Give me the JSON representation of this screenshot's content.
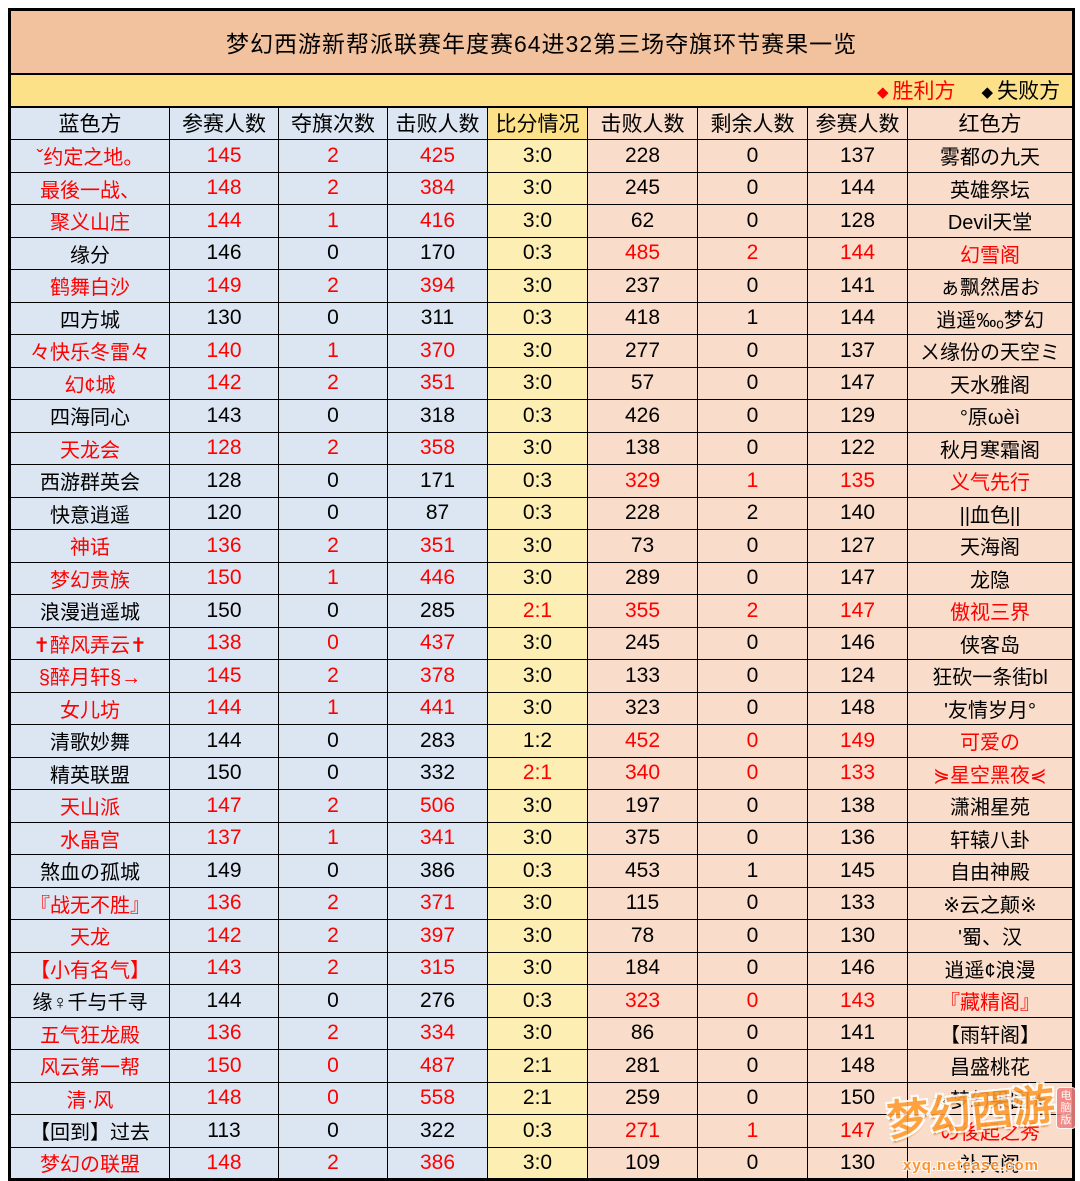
{
  "title": "梦幻西游新帮派联赛年度赛64进32第三场夺旗环节赛果一览",
  "legend": {
    "diamond": "◆",
    "winner_label": "胜利方",
    "loser_label": "失败方",
    "winner_color": "#ff0000",
    "loser_color": "#000000"
  },
  "table": {
    "headers": [
      "蓝色方",
      "参赛人数",
      "夺旗次数",
      "击败人数",
      "比分情况",
      "击败人数",
      "剩余人数",
      "参赛人数",
      "红色方"
    ],
    "rows": [
      {
        "blue": [
          "ˇ约定之地。",
          "145",
          "2",
          "425"
        ],
        "bw": true,
        "score": "3:0",
        "sr": false,
        "red": [
          "228",
          "0",
          "137",
          "雾都の九天"
        ],
        "rw": false
      },
      {
        "blue": [
          "最後一战、",
          "148",
          "2",
          "384"
        ],
        "bw": true,
        "score": "3:0",
        "sr": false,
        "red": [
          "245",
          "0",
          "144",
          "英雄祭坛"
        ],
        "rw": false
      },
      {
        "blue": [
          "聚义山庄",
          "144",
          "1",
          "416"
        ],
        "bw": true,
        "score": "3:0",
        "sr": false,
        "red": [
          "62",
          "0",
          "128",
          "Devil天堂"
        ],
        "rw": false
      },
      {
        "blue": [
          "缘分",
          "146",
          "0",
          "170"
        ],
        "bw": false,
        "score": "0:3",
        "sr": false,
        "red": [
          "485",
          "2",
          "144",
          "幻雪阁"
        ],
        "rw": true
      },
      {
        "blue": [
          "鹤舞白沙",
          "149",
          "2",
          "394"
        ],
        "bw": true,
        "score": "3:0",
        "sr": false,
        "red": [
          "237",
          "0",
          "141",
          "ぁ飘然居お"
        ],
        "rw": false
      },
      {
        "blue": [
          "四方城",
          "130",
          "0",
          "311"
        ],
        "bw": false,
        "score": "0:3",
        "sr": false,
        "red": [
          "418",
          "1",
          "144",
          "逍遥‰ₒ梦幻"
        ],
        "rw": false
      },
      {
        "blue": [
          "々快乐冬雷々",
          "140",
          "1",
          "370"
        ],
        "bw": true,
        "score": "3:0",
        "sr": false,
        "red": [
          "277",
          "0",
          "137",
          "ㄨ缘份の天空ミ"
        ],
        "rw": false
      },
      {
        "blue": [
          "幻¢城",
          "142",
          "2",
          "351"
        ],
        "bw": true,
        "score": "3:0",
        "sr": false,
        "red": [
          "57",
          "0",
          "147",
          "天水雅阁"
        ],
        "rw": false
      },
      {
        "blue": [
          "四海同心",
          "143",
          "0",
          "318"
        ],
        "bw": false,
        "score": "0:3",
        "sr": false,
        "red": [
          "426",
          "0",
          "129",
          "°原ωèì"
        ],
        "rw": false
      },
      {
        "blue": [
          "天龙会",
          "128",
          "2",
          "358"
        ],
        "bw": true,
        "score": "3:0",
        "sr": false,
        "red": [
          "138",
          "0",
          "122",
          "秋月寒霜阁"
        ],
        "rw": false
      },
      {
        "blue": [
          "西游群英会",
          "128",
          "0",
          "171"
        ],
        "bw": false,
        "score": "0:3",
        "sr": false,
        "red": [
          "329",
          "1",
          "135",
          "义气先行"
        ],
        "rw": true
      },
      {
        "blue": [
          "快意逍遥",
          "120",
          "0",
          "87"
        ],
        "bw": false,
        "score": "0:3",
        "sr": false,
        "red": [
          "228",
          "2",
          "140",
          "||血色||"
        ],
        "rw": false
      },
      {
        "blue": [
          "神话",
          "136",
          "2",
          "351"
        ],
        "bw": true,
        "score": "3:0",
        "sr": false,
        "red": [
          "73",
          "0",
          "127",
          "天海阁"
        ],
        "rw": false
      },
      {
        "blue": [
          "梦幻贵族",
          "150",
          "1",
          "446"
        ],
        "bw": true,
        "score": "3:0",
        "sr": false,
        "red": [
          "289",
          "0",
          "147",
          "龙隐"
        ],
        "rw": false
      },
      {
        "blue": [
          "浪漫逍遥城",
          "150",
          "0",
          "285"
        ],
        "bw": false,
        "score": "2:1",
        "sr": true,
        "red": [
          "355",
          "2",
          "147",
          "傲视三界"
        ],
        "rw": true
      },
      {
        "blue": [
          "✝醉风弄云✝",
          "138",
          "0",
          "437"
        ],
        "bw": true,
        "score": "3:0",
        "sr": false,
        "red": [
          "245",
          "0",
          "146",
          "侠客岛"
        ],
        "rw": false
      },
      {
        "blue": [
          "§醉月轩§→",
          "145",
          "2",
          "378"
        ],
        "bw": true,
        "score": "3:0",
        "sr": false,
        "red": [
          "133",
          "0",
          "124",
          "狂砍一条街bl"
        ],
        "rw": false
      },
      {
        "blue": [
          "女儿坊",
          "144",
          "1",
          "441"
        ],
        "bw": true,
        "score": "3:0",
        "sr": false,
        "red": [
          "323",
          "0",
          "148",
          "'友情岁月°"
        ],
        "rw": false
      },
      {
        "blue": [
          "清歌妙舞",
          "144",
          "0",
          "283"
        ],
        "bw": false,
        "score": "1:2",
        "sr": false,
        "red": [
          "452",
          "0",
          "149",
          "可爱の"
        ],
        "rw": true
      },
      {
        "blue": [
          "精英联盟",
          "150",
          "0",
          "332"
        ],
        "bw": false,
        "score": "2:1",
        "sr": true,
        "red": [
          "340",
          "0",
          "133",
          "⋟星空黑夜⋞"
        ],
        "rw": true
      },
      {
        "blue": [
          "天山派",
          "147",
          "2",
          "506"
        ],
        "bw": true,
        "score": "3:0",
        "sr": false,
        "red": [
          "197",
          "0",
          "138",
          "潇湘星苑"
        ],
        "rw": false
      },
      {
        "blue": [
          "水晶宫",
          "137",
          "1",
          "341"
        ],
        "bw": true,
        "score": "3:0",
        "sr": false,
        "red": [
          "375",
          "0",
          "136",
          "轩辕八卦"
        ],
        "rw": false
      },
      {
        "blue": [
          "煞血の孤城",
          "149",
          "0",
          "386"
        ],
        "bw": false,
        "score": "0:3",
        "sr": false,
        "red": [
          "453",
          "1",
          "145",
          "自由神殿"
        ],
        "rw": false
      },
      {
        "blue": [
          "『战无不胜』",
          "136",
          "2",
          "371"
        ],
        "bw": true,
        "score": "3:0",
        "sr": false,
        "red": [
          "115",
          "0",
          "133",
          "※云之颠※"
        ],
        "rw": false
      },
      {
        "blue": [
          "天龙",
          "142",
          "2",
          "397"
        ],
        "bw": true,
        "score": "3:0",
        "sr": false,
        "red": [
          "78",
          "0",
          "130",
          "'蜀、汉"
        ],
        "rw": false
      },
      {
        "blue": [
          "【小有名气】",
          "143",
          "2",
          "315"
        ],
        "bw": true,
        "score": "3:0",
        "sr": false,
        "red": [
          "184",
          "0",
          "146",
          "逍遥¢浪漫"
        ],
        "rw": false
      },
      {
        "blue": [
          "缘♀千与千寻",
          "144",
          "0",
          "276"
        ],
        "bw": false,
        "score": "0:3",
        "sr": false,
        "red": [
          "323",
          "0",
          "143",
          "『藏精阁』"
        ],
        "rw": true
      },
      {
        "blue": [
          "五气狂龙殿",
          "136",
          "2",
          "334"
        ],
        "bw": true,
        "score": "3:0",
        "sr": false,
        "red": [
          "86",
          "0",
          "141",
          "【雨轩阁】"
        ],
        "rw": false
      },
      {
        "blue": [
          "风云第一帮",
          "150",
          "0",
          "487"
        ],
        "bw": true,
        "score": "2:1",
        "sr": false,
        "red": [
          "281",
          "0",
          "148",
          "昌盛桃花"
        ],
        "rw": false
      },
      {
        "blue": [
          "清·风",
          "148",
          "0",
          "558"
        ],
        "bw": true,
        "score": "2:1",
        "sr": false,
        "red": [
          "259",
          "0",
          "150",
          "☆梦幻果园★"
        ],
        "rw": false
      },
      {
        "blue": [
          "【回到】过去",
          "113",
          "0",
          "322"
        ],
        "bw": false,
        "score": "0:3",
        "sr": false,
        "red": [
          "271",
          "1",
          "147",
          "の後起之秀"
        ],
        "rw": true
      },
      {
        "blue": [
          "梦幻の联盟",
          "148",
          "2",
          "386"
        ],
        "bw": true,
        "score": "3:0",
        "sr": false,
        "red": [
          "109",
          "0",
          "130",
          "补天阁"
        ],
        "rw": false
      }
    ]
  },
  "watermark": {
    "logo_text": "梦幻西游",
    "badge": "电脑版",
    "site": "xyq.netease.com"
  },
  "colors": {
    "title_bg": "#f2c29e",
    "legend_bg": "#fce189",
    "blue_cell_bg": "#dbe6f2",
    "score_cell_bg": "#fdeeb4",
    "red_cell_bg": "#f9dcca",
    "winner_text": "#ff0000",
    "loser_text": "#000000",
    "grid_line": "#000000"
  }
}
